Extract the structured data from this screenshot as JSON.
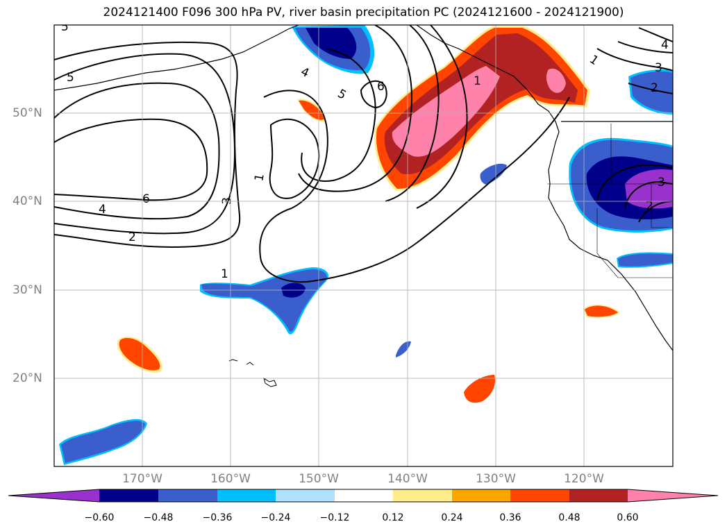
{
  "title": "2024121400 F096 300 hPa PV, river basin precipitation PC (2024121600 - 2024121900)",
  "map": {
    "longitude_labels": [
      "170°W",
      "160°W",
      "150°W",
      "140°W",
      "130°W",
      "120°W"
    ],
    "latitude_labels": [
      "50°N",
      "40°N",
      "30°N",
      "20°N"
    ],
    "pv_contour_labels": [
      "5",
      "4",
      "5",
      "6",
      "1",
      "3",
      "6",
      "4",
      "2",
      "1",
      "1",
      "3",
      "2",
      "2",
      "3",
      "4",
      "1"
    ]
  },
  "colorbar": {
    "ticks": [
      "−0.60",
      "−0.48",
      "−0.36",
      "−0.24",
      "−0.12",
      "0.12",
      "0.24",
      "0.36",
      "0.48",
      "0.60"
    ],
    "colors": [
      "#9932cc",
      "#00008b",
      "#3a5fcd",
      "#00bfff",
      "#b0e2ff",
      "#ffffff",
      "#ffec8b",
      "#ffa500",
      "#ff4500",
      "#b22222",
      "#ff82ab"
    ]
  }
}
